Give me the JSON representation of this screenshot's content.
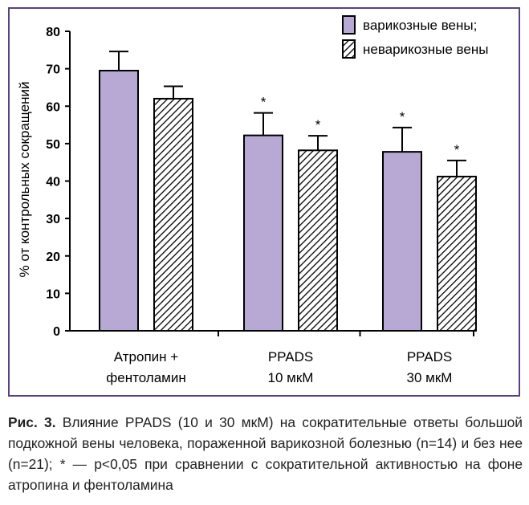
{
  "chart_data": {
    "type": "bar",
    "categories": [
      [
        "Атропин +",
        "фентоламин"
      ],
      [
        "PPADS",
        "10 мкМ"
      ],
      [
        "PPADS",
        "30 мкМ"
      ]
    ],
    "series": [
      {
        "name": "варикозные вены;",
        "fill": "#b8a8d4",
        "pattern": "solid",
        "values": [
          69.5,
          52.2,
          47.8
        ],
        "errors": [
          5.1,
          6.0,
          6.5
        ],
        "significant": [
          false,
          true,
          true
        ]
      },
      {
        "name": "неварикозные вены",
        "fill": "#ffffff",
        "pattern": "hatch",
        "values": [
          62.0,
          48.2,
          41.2
        ],
        "errors": [
          3.3,
          3.9,
          4.3
        ],
        "significant": [
          false,
          true,
          true
        ]
      }
    ],
    "ylabel": "% от контрольных сокращений",
    "ylim": [
      0,
      80
    ],
    "yticks": [
      "0",
      "10",
      "20",
      "30",
      "40",
      "50",
      "60",
      "70",
      "80"
    ],
    "significance_marker": "*",
    "legend_position": "top-right",
    "grid": false
  },
  "caption": {
    "label": "Рис. 3.",
    "text": "Влияние PPADS (10 и 30 мкМ) на сократительные ответы большой подкожной вены человека, пораженной варикозной болезнью (n=14) и без нее (n=21); * — p<0,05 при сравнении с сократительной активностью на фоне атропина и фентоламина"
  },
  "colors": {
    "frame": "#5a3f86",
    "bar_fill": "#b8a8d4",
    "axis": "#000000"
  }
}
